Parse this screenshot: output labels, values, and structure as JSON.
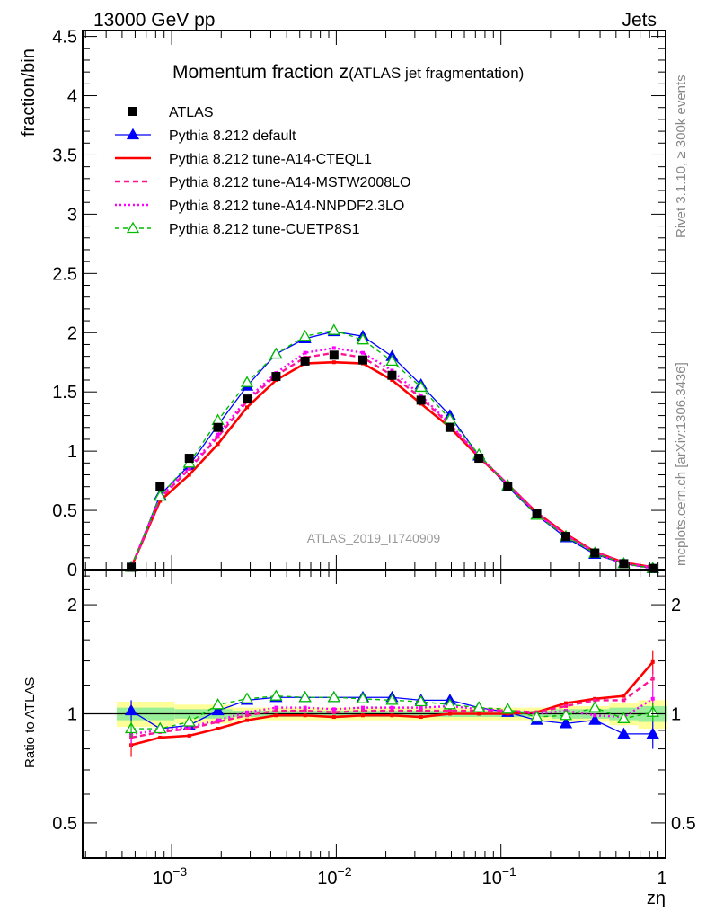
{
  "header": {
    "left": "13000 GeV pp",
    "right": "Jets"
  },
  "side_text": {
    "rivet": "Rivet 3.1.10, ≥ 300k events",
    "mcplots": "mcplots.cern.ch [arXiv:1306.3436]"
  },
  "chart_data": [
    {
      "type": "line",
      "title_main": "Momentum fraction z",
      "title_sub": "(ATLAS jet fragmentation)",
      "ylabel": "fraction/bin",
      "watermark": "ATLAS_2019_I1740909",
      "xscale": "log",
      "xlim": [
        0.000288,
        1
      ],
      "ylim": [
        0,
        4.55
      ],
      "yticks": [
        "0",
        "0.5",
        "1",
        "1.5",
        "2",
        "2.5",
        "3",
        "3.5",
        "4",
        "4.5"
      ],
      "legend_position": "top-left",
      "x": [
        0.000568,
        0.000851,
        0.00128,
        0.00191,
        0.00287,
        0.00431,
        0.00646,
        0.00968,
        0.0145,
        0.0218,
        0.0327,
        0.049,
        0.0735,
        0.11,
        0.165,
        0.248,
        0.372,
        0.557,
        0.836
      ],
      "series": [
        {
          "name": "ATLAS",
          "color": "#000000",
          "style": "data",
          "values": [
            0.02,
            0.7,
            0.94,
            1.2,
            1.44,
            1.63,
            1.76,
            1.81,
            1.77,
            1.64,
            1.43,
            1.2,
            0.94,
            0.7,
            0.47,
            0.28,
            0.14,
            0.05,
            0.01
          ]
        },
        {
          "name": "Pythia 8.212 default",
          "color": "#0000ff",
          "style": "solid-thin",
          "marker": "triangle-filled",
          "values": [
            0.02,
            0.63,
            0.88,
            1.22,
            1.55,
            1.82,
            1.95,
            2.01,
            1.97,
            1.8,
            1.56,
            1.3,
            0.96,
            0.7,
            0.46,
            0.27,
            0.13,
            0.05,
            0.01
          ]
        },
        {
          "name": "Pythia 8.212 tune-A14-CTEQL1",
          "color": "#ff0000",
          "style": "solid-thick",
          "marker": "dot",
          "values": [
            0.02,
            0.58,
            0.8,
            1.06,
            1.37,
            1.6,
            1.74,
            1.75,
            1.74,
            1.6,
            1.4,
            1.2,
            0.95,
            0.72,
            0.48,
            0.3,
            0.15,
            0.06,
            0.02
          ]
        },
        {
          "name": "Pythia 8.212 tune-A14-MSTW2008LO",
          "color": "#ff1493",
          "style": "dashed",
          "marker": "dot",
          "values": [
            0.02,
            0.6,
            0.85,
            1.12,
            1.42,
            1.64,
            1.79,
            1.83,
            1.79,
            1.64,
            1.45,
            1.22,
            0.96,
            0.72,
            0.48,
            0.29,
            0.15,
            0.06,
            0.02
          ]
        },
        {
          "name": "Pythia 8.212 tune-A14-NNPDF2.3LO",
          "color": "#ff00ff",
          "style": "dotted",
          "marker": "dot",
          "values": [
            0.02,
            0.61,
            0.86,
            1.14,
            1.44,
            1.66,
            1.83,
            1.87,
            1.83,
            1.68,
            1.47,
            1.23,
            0.96,
            0.72,
            0.47,
            0.29,
            0.14,
            0.05,
            0.01
          ]
        },
        {
          "name": "Pythia 8.212 tune-CUETP8S1",
          "color": "#00bb00",
          "style": "dashed-thin",
          "marker": "triangle-open",
          "values": [
            0.02,
            0.62,
            0.9,
            1.26,
            1.58,
            1.82,
            1.97,
            2.02,
            1.94,
            1.76,
            1.54,
            1.27,
            0.97,
            0.71,
            0.46,
            0.28,
            0.14,
            0.05,
            0.01
          ]
        }
      ]
    },
    {
      "type": "line",
      "ylabel": "Ratio to ATLAS",
      "xlabel": "zη",
      "xscale": "log",
      "yscale": "log",
      "ylim": [
        0.4,
        2.5
      ],
      "yticks": [
        "0.5",
        "1",
        "2"
      ],
      "xticks": [
        "10^-3",
        "10^-2",
        "10^-1",
        "1"
      ],
      "band_yellow_halfwidth": [
        0.08,
        0.08,
        0.06,
        0.06,
        0.04,
        0.04,
        0.04,
        0.04,
        0.04,
        0.04,
        0.04,
        0.04,
        0.04,
        0.04,
        0.04,
        0.05,
        0.05,
        0.07,
        0.09
      ],
      "band_green_halfwidth": [
        0.04,
        0.04,
        0.03,
        0.03,
        0.02,
        0.02,
        0.02,
        0.02,
        0.02,
        0.02,
        0.02,
        0.02,
        0.02,
        0.02,
        0.02,
        0.03,
        0.03,
        0.04,
        0.05
      ],
      "series": [
        {
          "name": "Pythia 8.212 default",
          "values": [
            1.02,
            0.91,
            0.93,
            1.02,
            1.09,
            1.11,
            1.11,
            1.11,
            1.11,
            1.11,
            1.09,
            1.09,
            1.04,
            1.01,
            0.96,
            0.94,
            0.96,
            0.88,
            0.88
          ],
          "err_first": 0.07,
          "err_last": 0.08
        },
        {
          "name": "Pythia 8.212 tune-A14-CTEQL1",
          "values": [
            0.82,
            0.86,
            0.87,
            0.91,
            0.96,
            0.99,
            0.99,
            0.98,
            0.99,
            0.99,
            0.98,
            1.0,
            1.0,
            1.0,
            1.01,
            1.07,
            1.1,
            1.12,
            1.39
          ],
          "err_first": 0.06,
          "err_last": 0.1
        },
        {
          "name": "Pythia 8.212 tune-A14-MSTW2008LO",
          "values": [
            0.86,
            0.89,
            0.91,
            0.95,
            0.99,
            1.02,
            1.02,
            1.01,
            1.02,
            1.02,
            1.02,
            1.02,
            1.02,
            1.02,
            1.01,
            1.05,
            1.09,
            1.09,
            1.25
          ],
          "err_first": 0.05,
          "err_last": 0.08
        },
        {
          "name": "Pythia 8.212 tune-A14-NNPDF2.3LO",
          "values": [
            0.88,
            0.9,
            0.92,
            0.96,
            1.01,
            1.04,
            1.04,
            1.03,
            1.04,
            1.04,
            1.04,
            1.05,
            1.03,
            1.02,
            1.0,
            1.02,
            0.99,
            0.98,
            1.1
          ],
          "err_first": 0.05,
          "err_last": 0.07
        },
        {
          "name": "Pythia 8.212 tune-CUETP8S1",
          "values": [
            0.91,
            0.91,
            0.95,
            1.06,
            1.1,
            1.12,
            1.11,
            1.11,
            1.1,
            1.09,
            1.08,
            1.06,
            1.04,
            1.03,
            0.98,
            0.99,
            1.04,
            0.97,
            1.01
          ],
          "err_first": 0.05,
          "err_last": 0.06
        }
      ]
    }
  ]
}
